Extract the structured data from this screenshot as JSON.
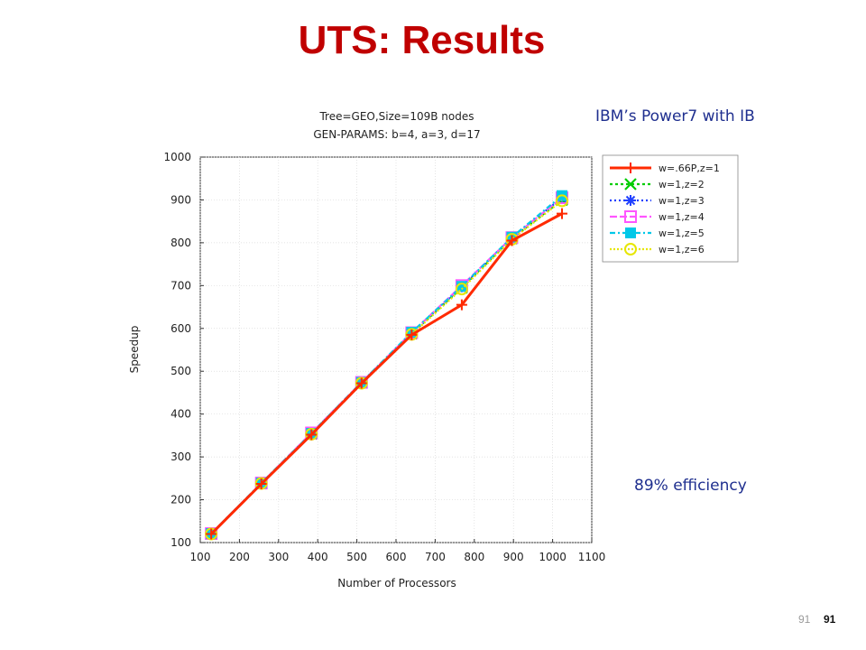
{
  "slide": {
    "title": "UTS: Results",
    "note_top": "IBM’s Power7 with IB",
    "note_bottom": "89% efficiency",
    "page_number": "91",
    "page_number_bold": "91",
    "title_color": "#c00000",
    "note_color": "#1f2f8f"
  },
  "chart_data": {
    "type": "line",
    "title": "Tree=GEO,Size=109B nodes",
    "subtitle": "GEN-PARAMS: b=4, a=3, d=17",
    "xlabel": "Number of Processors",
    "ylabel": "Speedup",
    "xlim": [
      100,
      1100
    ],
    "ylim": [
      100,
      1000
    ],
    "x_ticks": [
      100,
      200,
      300,
      400,
      500,
      600,
      700,
      800,
      900,
      1000,
      1100
    ],
    "y_ticks": [
      100,
      200,
      300,
      400,
      500,
      600,
      700,
      800,
      900,
      1000
    ],
    "grid": true,
    "legend_position": "top-right",
    "x": [
      128,
      256,
      384,
      512,
      640,
      768,
      896,
      1024
    ],
    "series": [
      {
        "name": "w=.66P,z=1",
        "color": "#ff2a00",
        "marker": "plus",
        "dash": "",
        "values": [
          120,
          237,
          352,
          472,
          585,
          655,
          805,
          868
        ]
      },
      {
        "name": "w=1,z=2",
        "color": "#00cc00",
        "marker": "x",
        "dash": "3,3",
        "values": [
          121,
          238,
          354,
          473,
          588,
          695,
          810,
          900
        ]
      },
      {
        "name": "w=1,z=3",
        "color": "#2040ff",
        "marker": "star",
        "dash": "2,3",
        "values": [
          121,
          238,
          355,
          474,
          589,
          697,
          812,
          905
        ]
      },
      {
        "name": "w=1,z=4",
        "color": "#ff55ff",
        "marker": "square-open",
        "dash": "8,3",
        "values": [
          121,
          239,
          356,
          474,
          590,
          700,
          812,
          905
        ]
      },
      {
        "name": "w=1,z=5",
        "color": "#00c8e8",
        "marker": "square-filled",
        "dash": "6,3,2,3",
        "values": [
          121,
          239,
          355,
          474,
          591,
          698,
          813,
          910
        ]
      },
      {
        "name": "w=1,z=6",
        "color": "#e6e600",
        "marker": "circle-open",
        "dash": "2,2",
        "values": [
          120,
          238,
          353,
          472,
          586,
          692,
          808,
          898
        ]
      }
    ]
  }
}
